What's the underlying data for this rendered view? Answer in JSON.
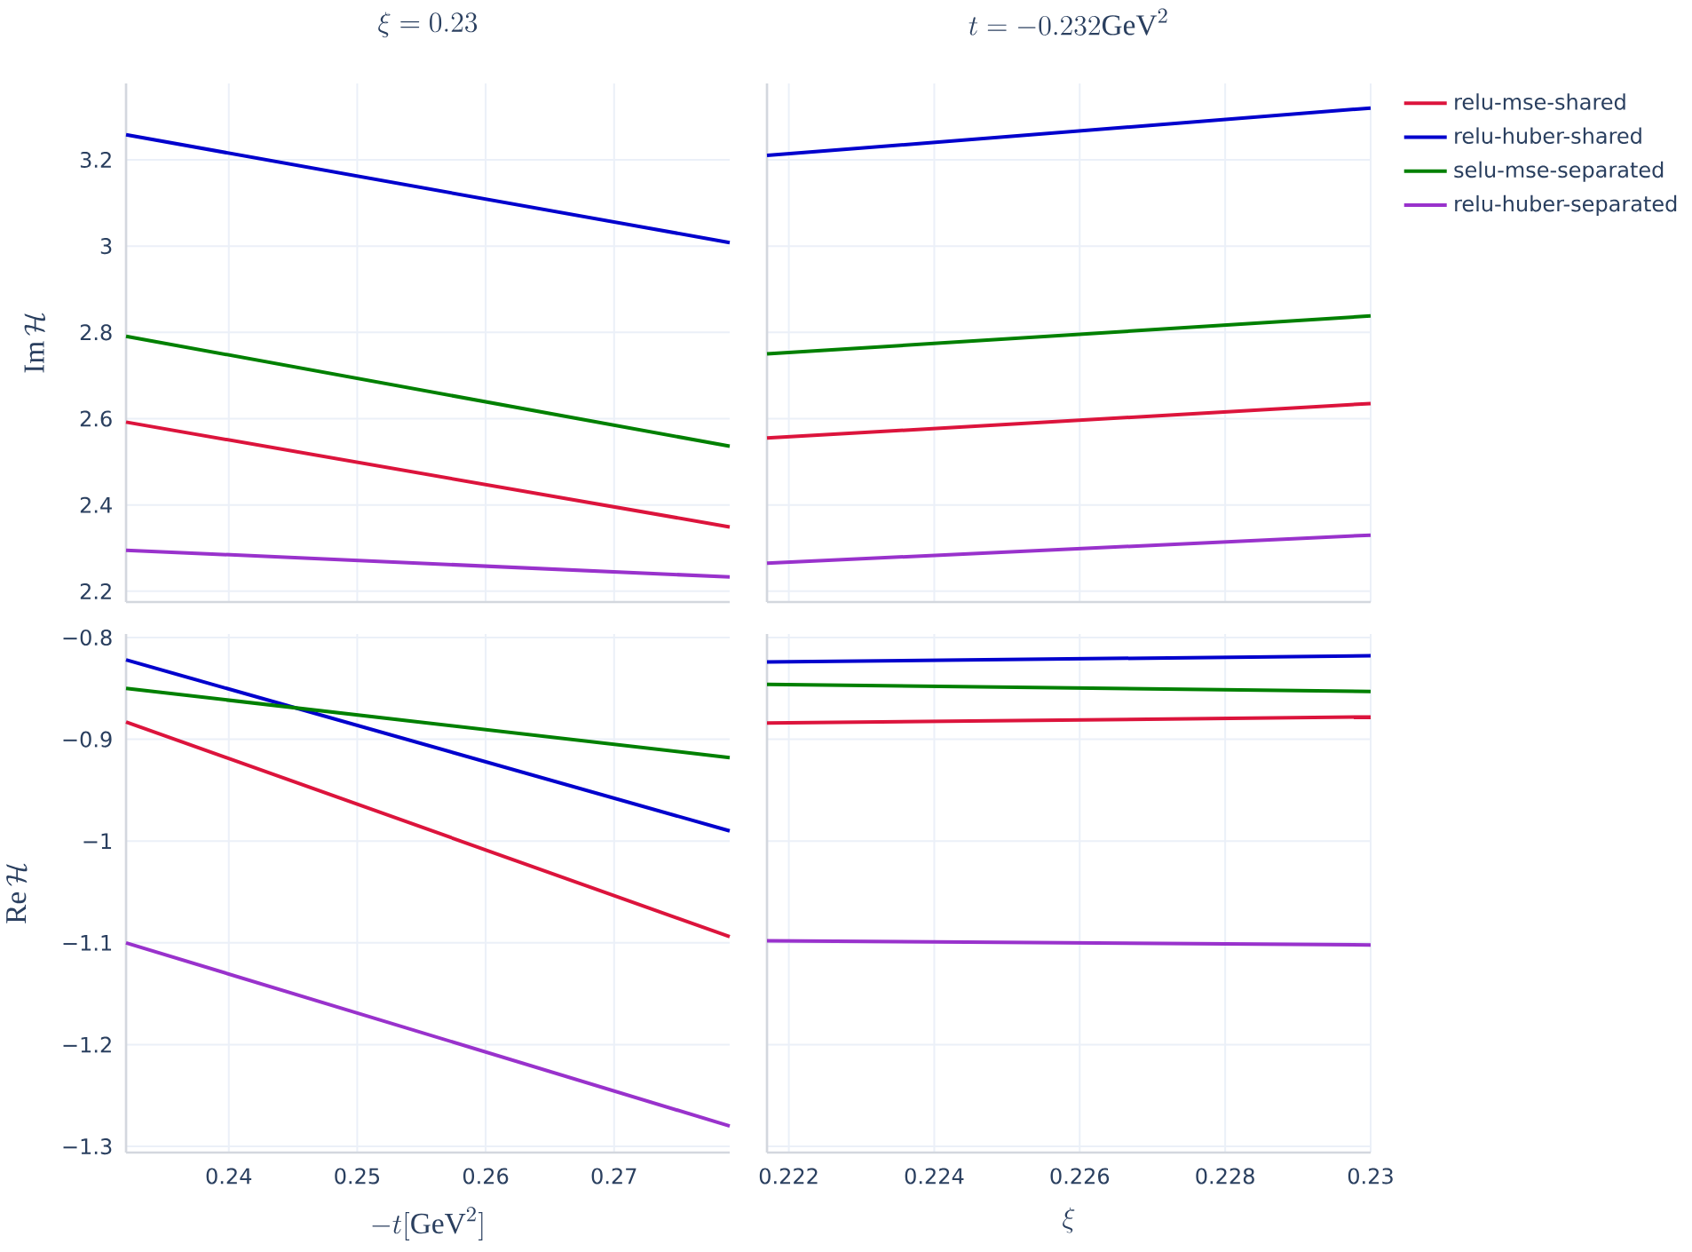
{
  "chart_data": [
    {
      "type": "line",
      "title": "\\xi = 0.23",
      "ylabel": "\\mathrm{Im}\\,\\mathcal{H}",
      "x": [
        0.232,
        0.279
      ],
      "xlim": [
        0.232,
        0.279
      ],
      "xticks": [
        0.24,
        0.25,
        0.26,
        0.27
      ],
      "ylim": [
        2.175,
        3.377
      ],
      "yticks": [
        2.2,
        2.4,
        2.6,
        2.8,
        3,
        3.2
      ],
      "grid": true,
      "tick_labels": "y",
      "series": [
        {
          "color": "#dc143c",
          "values": [
            2.592,
            2.349
          ]
        },
        {
          "color": "#0000cd",
          "values": [
            3.258,
            3.008
          ]
        },
        {
          "color": "#008000",
          "values": [
            2.791,
            2.536
          ]
        },
        {
          "color": "#9932cc",
          "values": [
            2.295,
            2.233
          ]
        }
      ]
    },
    {
      "type": "line",
      "title": "t = -0.232\\mathrm{GeV}^2",
      "x": [
        0.2217,
        0.23
      ],
      "xlim": [
        0.2217,
        0.23
      ],
      "xticks": [
        0.222,
        0.224,
        0.226,
        0.228,
        0.23
      ],
      "ylim": [
        2.175,
        3.377
      ],
      "yticks": [
        2.2,
        2.4,
        2.6,
        2.8,
        3,
        3.2
      ],
      "grid": true,
      "tick_labels": false,
      "legend": "right",
      "series": [
        {
          "name": "relu-mse-shared",
          "color": "#dc143c",
          "values": [
            2.555,
            2.635
          ]
        },
        {
          "name": "relu-huber-shared",
          "color": "#0000cd",
          "values": [
            3.21,
            3.32
          ]
        },
        {
          "name": "selu-mse-separated",
          "color": "#008000",
          "values": [
            2.75,
            2.838
          ]
        },
        {
          "name": "relu-huber-separated",
          "color": "#9932cc",
          "values": [
            2.265,
            2.33
          ]
        }
      ]
    },
    {
      "type": "line",
      "xlabel": "-t[\\mathrm{GeV}^2]",
      "ylabel": "\\mathrm{Re}\\,\\mathcal{H}",
      "x": [
        0.232,
        0.279
      ],
      "xlim": [
        0.232,
        0.279
      ],
      "xticks": [
        0.24,
        0.25,
        0.26,
        0.27
      ],
      "ylim": [
        -1.306,
        -0.7965
      ],
      "yticks": [
        {
          "value": -1.3,
          "label": "−1.3"
        },
        {
          "value": -1.2,
          "label": "−1.2"
        },
        {
          "value": -1.1,
          "label": "−1.1"
        },
        {
          "value": -1,
          "label": "−1"
        },
        {
          "value": -0.9,
          "label": "−0.9"
        },
        {
          "value": -0.8,
          "label": "−0.8"
        }
      ],
      "grid": true,
      "series": [
        {
          "color": "#dc143c",
          "values": [
            -0.883,
            -1.094
          ]
        },
        {
          "color": "#0000cd",
          "values": [
            -0.822,
            -0.99
          ]
        },
        {
          "color": "#008000",
          "values": [
            -0.85,
            -0.918
          ]
        },
        {
          "color": "#9932cc",
          "values": [
            -1.1,
            -1.28
          ]
        }
      ]
    },
    {
      "type": "line",
      "xlabel": "\\xi",
      "x": [
        0.2217,
        0.23
      ],
      "xlim": [
        0.2217,
        0.23
      ],
      "xticks": [
        0.222,
        0.224,
        0.226,
        0.228,
        0.23
      ],
      "ylim": [
        -1.306,
        -0.7965
      ],
      "yticks": [
        {
          "value": -1.3,
          "label": null
        },
        {
          "value": -1.2,
          "label": null
        },
        {
          "value": -1.1,
          "label": null
        },
        {
          "value": -1,
          "label": null
        },
        {
          "value": -0.9,
          "label": null
        },
        {
          "value": -0.8,
          "label": null
        }
      ],
      "grid": true,
      "tick_labels": "x",
      "series": [
        {
          "color": "#dc143c",
          "values": [
            -0.884,
            -0.878
          ]
        },
        {
          "color": "#0000cd",
          "values": [
            -0.824,
            -0.818
          ]
        },
        {
          "color": "#008000",
          "values": [
            -0.846,
            -0.853
          ]
        },
        {
          "color": "#9932cc",
          "values": [
            -1.098,
            -1.102
          ]
        }
      ]
    }
  ]
}
